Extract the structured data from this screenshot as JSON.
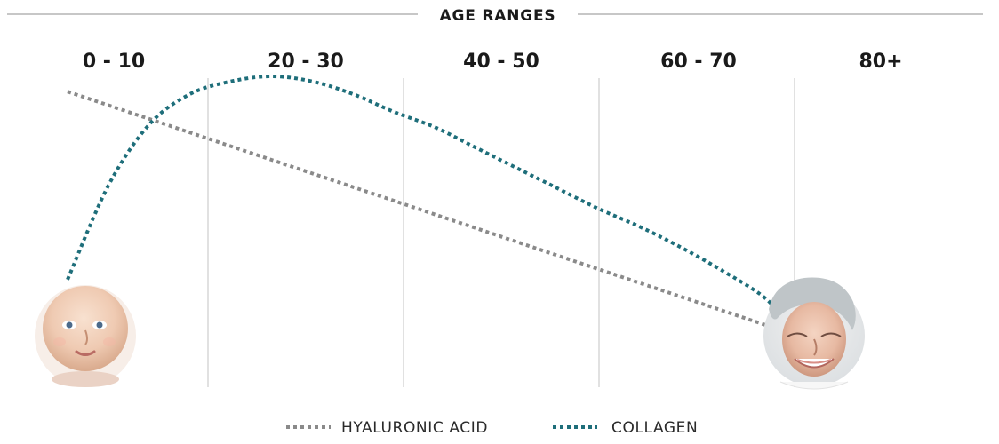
{
  "chart_data": {
    "type": "line",
    "title": "AGE RANGES",
    "categories": [
      "0 - 10",
      "20 - 30",
      "40 - 50",
      "60 - 70",
      "80+"
    ],
    "xlim": [
      0,
      80
    ],
    "ylim": [
      0,
      100
    ],
    "grid": {
      "vertical": true,
      "horizontal": false
    },
    "legend": {
      "placement": "bottom-center"
    },
    "series": [
      {
        "name": "HYALURONIC ACID",
        "color": "#8a8a8a",
        "style": "dotted",
        "points": [
          {
            "x": 0,
            "y": 94
          },
          {
            "x": 70,
            "y": 0
          }
        ]
      },
      {
        "name": "COLLAGEN",
        "color": "#1e6e7a",
        "style": "dotted",
        "points": [
          {
            "x": 0,
            "y": 20
          },
          {
            "x": 4,
            "y": 57
          },
          {
            "x": 8,
            "y": 81
          },
          {
            "x": 12,
            "y": 93
          },
          {
            "x": 16,
            "y": 98
          },
          {
            "x": 20,
            "y": 100
          },
          {
            "x": 24,
            "y": 98
          },
          {
            "x": 28,
            "y": 93
          },
          {
            "x": 32,
            "y": 86
          },
          {
            "x": 36,
            "y": 80
          },
          {
            "x": 40,
            "y": 72
          },
          {
            "x": 44,
            "y": 64
          },
          {
            "x": 48,
            "y": 56
          },
          {
            "x": 52,
            "y": 48
          },
          {
            "x": 56,
            "y": 41
          },
          {
            "x": 60,
            "y": 33
          },
          {
            "x": 64,
            "y": 24
          },
          {
            "x": 68,
            "y": 14
          },
          {
            "x": 70,
            "y": 6
          }
        ]
      }
    ],
    "annotations": [
      {
        "type": "image",
        "subject": "baby-photo",
        "attached_to": "start-of-curves"
      },
      {
        "type": "image",
        "subject": "elderly-woman-photo",
        "attached_to": "end-of-curves"
      }
    ],
    "colors": {
      "axis_line": "#c7c7c7",
      "grid": "#d7d7d7",
      "text": "#1a1a1a"
    }
  }
}
